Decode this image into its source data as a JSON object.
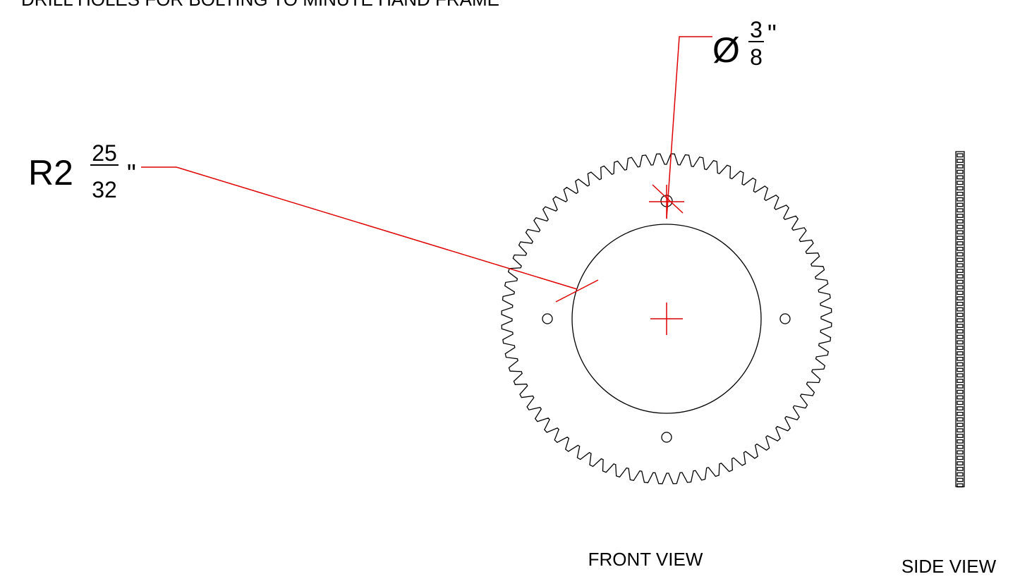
{
  "note_text": "DRILL HOLES FOR BOLTING TO MINUTE HAND FRAME",
  "hole_dimension": {
    "prefix": "Ø",
    "numerator": "3",
    "denominator": "8",
    "unit": "\""
  },
  "radius_dimension": {
    "prefix": "R2",
    "numerator": "25",
    "denominator": "32",
    "unit": "\""
  },
  "views": {
    "front": "FRONT VIEW",
    "side": "SIDE VIEW"
  }
}
